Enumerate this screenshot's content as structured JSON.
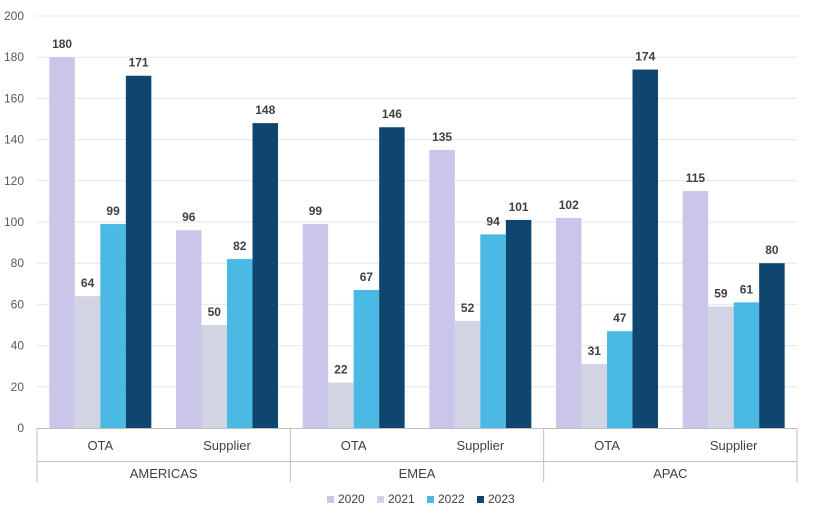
{
  "chart_data": {
    "type": "bar",
    "title": "",
    "xlabel": "",
    "ylabel": "",
    "ylim": [
      0,
      200
    ],
    "yticks": [
      0,
      20,
      40,
      60,
      80,
      100,
      120,
      140,
      160,
      180,
      200
    ],
    "grid": true,
    "legend_position": "bottom",
    "groups": [
      {
        "label": "AMERICAS",
        "categories": [
          "OTA",
          "Supplier"
        ]
      },
      {
        "label": "EMEA",
        "categories": [
          "OTA",
          "Supplier"
        ]
      },
      {
        "label": "APAC",
        "categories": [
          "OTA",
          "Supplier"
        ]
      }
    ],
    "categories": [
      "OTA",
      "Supplier",
      "OTA",
      "Supplier",
      "OTA",
      "Supplier"
    ],
    "series": [
      {
        "name": "2020",
        "color": "#c9c6ea",
        "values": [
          180,
          96,
          99,
          135,
          102,
          115
        ]
      },
      {
        "name": "2021",
        "color": "#d3d4e3",
        "values": [
          64,
          50,
          22,
          52,
          31,
          59
        ]
      },
      {
        "name": "2022",
        "color": "#4ab9e4",
        "values": [
          99,
          82,
          67,
          94,
          47,
          61
        ]
      },
      {
        "name": "2023",
        "color": "#0e4670",
        "values": [
          171,
          148,
          146,
          101,
          174,
          80
        ]
      }
    ]
  }
}
